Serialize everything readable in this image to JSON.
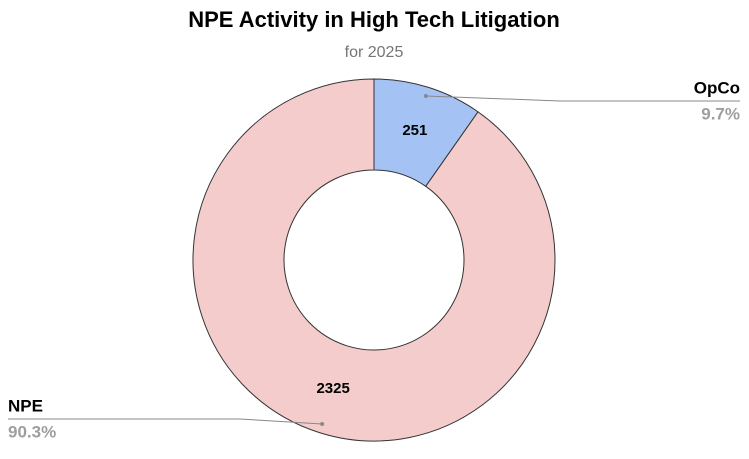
{
  "chart_data": {
    "type": "pie",
    "title": "NPE Activity in High Tech Litigation",
    "subtitle": "for 2025",
    "categories": [
      "OpCo",
      "NPE"
    ],
    "values": [
      251,
      2325
    ],
    "percent_labels": [
      "9.7%",
      "90.3%"
    ],
    "colors": [
      "#a4c2f4",
      "#f4cccc"
    ],
    "donut": true
  }
}
